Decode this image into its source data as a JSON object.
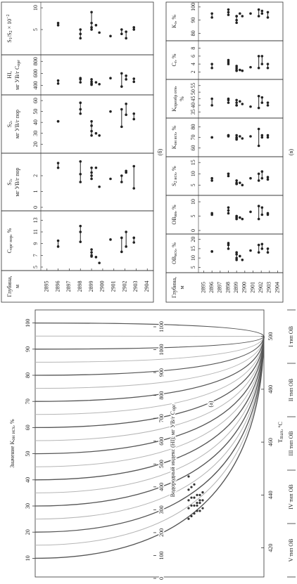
{
  "chart_data": [
    {
      "type": "line",
      "label": "(а)",
      "k_title": [
        {
          "text": "Значение K"
        },
        {
          "sub": "он исх"
        },
        {
          "text": ", %"
        }
      ],
      "k_ticks": [
        100,
        90,
        80,
        70,
        60,
        50,
        40,
        30,
        20,
        10
      ],
      "k_lim": [
        5,
        105
      ],
      "hi_title": [
        {
          "text": "Водородный индекс (HI), мг УВ/г C"
        },
        {
          "sub": "орг"
        }
      ],
      "hi_ticks": [
        0,
        100,
        200,
        300,
        400,
        500,
        600,
        700,
        800,
        900,
        1000,
        1100
      ],
      "hi_lim": [
        0,
        1100
      ],
      "x_title": [
        {
          "text": "T"
        },
        {
          "sub": "max"
        },
        {
          "text": ", °C"
        }
      ],
      "xticks": [
        420,
        440,
        460,
        480,
        500
      ],
      "xlim": [
        409,
        510
      ],
      "types": [
        "V тип ОВ",
        "IV тип ОВ",
        "III тип ОВ",
        "II тип ОВ",
        "I тип ОВ"
      ],
      "points_x": [
        431,
        432,
        433,
        434,
        434,
        435,
        435,
        436,
        436,
        437,
        437,
        438,
        438,
        439,
        439,
        440,
        440,
        441,
        442,
        443,
        444,
        436,
        438,
        441,
        447
      ],
      "color": "#333333"
    },
    {
      "type": "strip",
      "label": "(б)",
      "depth_title": [
        [
          {
            "text": "Глубина,"
          }
        ],
        [
          {
            "text": "м"
          }
        ]
      ],
      "depth_ticks": [
        2895,
        2896,
        2897,
        2898,
        2899,
        2900,
        2901,
        2902,
        2903,
        2904
      ],
      "ylim": [
        2894.7,
        2904.3
      ],
      "depths": [
        2896,
        2896,
        2898,
        2898,
        2898,
        2899,
        2899,
        2899,
        2899,
        2899.4,
        2899.7,
        2900.7,
        2901.7,
        2901.7,
        2902.1,
        2902.1,
        2902.8,
        2902.8
      ],
      "color": "#222222",
      "subplots": [
        {
          "title": [
            [
              {
                "text": "C"
              },
              {
                "sub": "орг пор"
              },
              {
                "text": ", %"
              }
            ]
          ],
          "xlim": [
            5,
            14
          ],
          "xticks": [
            5,
            7,
            9,
            11,
            13
          ],
          "values": [
            8.5,
            9.5,
            9.3,
            11,
            12,
            7,
            7.5,
            8,
            6.8,
            6.7,
            5.7,
            9.7,
            7.6,
            10,
            8.5,
            11,
            9.2,
            10
          ]
        },
        {
          "title": [
            [
              {
                "text": "S"
              },
              {
                "sub": "1"
              },
              {
                "text": ","
              }
            ],
            [
              {
                "text": "мг УВ/г пор"
              }
            ]
          ],
          "xlim": [
            0,
            3.2
          ],
          "xticks": [
            0,
            1,
            2
          ],
          "values": [
            2.5,
            2.8,
            1.6,
            2.1,
            2.9,
            1.8,
            2.2,
            2.5,
            2,
            2.5,
            1.3,
            1.8,
            1.6,
            2,
            2.3,
            2.2,
            1.2,
            2.6
          ]
        },
        {
          "title": [
            [
              {
                "text": "S"
              },
              {
                "sub": "2"
              },
              {
                "text": ","
              }
            ],
            [
              {
                "text": "мг УВ/г пор"
              }
            ]
          ],
          "xlim": [
            15,
            62
          ],
          "xticks": [
            20,
            30,
            40,
            50,
            60
          ],
          "values": [
            41,
            41,
            48,
            52,
            58,
            28,
            32,
            37,
            41,
            30,
            28,
            50,
            36,
            52,
            47,
            57,
            43,
            48
          ]
        },
        {
          "title": [
            [
              {
                "text": "HI,"
              }
            ],
            [
              {
                "text": "мг УВ/г C"
              },
              {
                "sub": "орг"
              }
            ]
          ],
          "xlim": [
            300,
            850
          ],
          "xticks": [
            400,
            600,
            800
          ],
          "values": [
            430,
            480,
            450,
            500,
            520,
            410,
            430,
            460,
            500,
            450,
            420,
            520,
            380,
            600,
            500,
            560,
            460,
            510
          ]
        },
        {
          "title": [
            [
              {
                "text": "S"
              },
              {
                "sub": "1"
              },
              {
                "text": "/S"
              },
              {
                "sub": "2"
              },
              {
                "text": " × 10"
              },
              {
                "sup": "−2"
              }
            ]
          ],
          "xlim": [
            0,
            10.5
          ],
          "xticks": [
            5,
            10
          ],
          "values": [
            6,
            6.5,
            3,
            4,
            5,
            5.5,
            6.5,
            9,
            5,
            6,
            4.3,
            3.5,
            4,
            5,
            4.5,
            3,
            5,
            5.5
          ]
        }
      ]
    },
    {
      "type": "strip",
      "label": "(в)",
      "depth_title": [
        [
          {
            "text": "Глубина,"
          }
        ],
        [
          {
            "text": "м"
          }
        ]
      ],
      "depth_ticks": [
        2895,
        2896,
        2897,
        2898,
        2899,
        2900,
        2901,
        2902,
        2903,
        2904
      ],
      "ylim": [
        2894.7,
        2904.3
      ],
      "depths": [
        2896,
        2896,
        2898,
        2898,
        2898,
        2899,
        2899,
        2899,
        2899,
        2899.4,
        2899.7,
        2900.7,
        2901.7,
        2901.7,
        2902.1,
        2902.1,
        2902.8,
        2902.8
      ],
      "color": "#222222",
      "subplots": [
        {
          "title": [
            [
              {
                "text": "ОВ"
              },
              {
                "sub": "исх"
              },
              {
                "text": ", %"
              }
            ]
          ],
          "xlim": [
            4,
            21
          ],
          "xticks": [
            5,
            10,
            15,
            20
          ],
          "values": [
            13.5,
            13.5,
            15,
            17,
            18,
            10,
            12,
            13,
            9,
            11,
            9,
            14,
            13,
            17,
            15,
            17.5,
            13,
            15
          ]
        },
        {
          "title": [
            [
              {
                "text": "ОВ"
              },
              {
                "sub": "ин"
              },
              {
                "text": ", %"
              }
            ]
          ],
          "xlim": [
            0,
            11
          ],
          "xticks": [
            0,
            5,
            10
          ],
          "values": [
            5.5,
            6,
            6,
            7,
            8,
            4,
            5,
            5,
            4.5,
            4.5,
            4,
            6.5,
            4,
            8.5,
            5.5,
            8,
            5.5,
            6
          ]
        },
        {
          "title": [
            [
              {
                "text": "S"
              },
              {
                "sub": "2 исх"
              },
              {
                "text": ", %"
              }
            ]
          ],
          "xlim": [
            2,
            16
          ],
          "xticks": [
            5,
            10,
            15
          ],
          "values": [
            7,
            8,
            9,
            10,
            10,
            5.5,
            6,
            7,
            5.5,
            6,
            5,
            8,
            7,
            10,
            8,
            11,
            7.5,
            8.5
          ]
        },
        {
          "title": [
            [
              {
                "text": "K"
              },
              {
                "sub": "он исх"
              },
              {
                "text": ", %"
              }
            ]
          ],
          "xlim": [
            55,
            85
          ],
          "xticks": [
            60,
            70,
            80
          ],
          "values": [
            70,
            70,
            71,
            72,
            72,
            68,
            70,
            72,
            69,
            71,
            69,
            71,
            62,
            78,
            70,
            72,
            70,
            72
          ]
        },
        {
          "title": [
            [
              {
                "text": "K"
              },
              {
                "sub": "преобр отн"
              },
              {
                "text": ","
              }
            ],
            [
              {
                "text": "%"
              }
            ]
          ],
          "xlim": [
            33,
            57
          ],
          "xticks": [
            35,
            40,
            45,
            50,
            55
          ],
          "values": [
            40,
            45,
            42,
            44,
            45,
            40,
            42,
            44,
            40,
            43,
            41,
            39,
            38,
            47,
            42,
            46,
            40,
            42
          ]
        },
        {
          "title": [
            [
              {
                "text": "C"
              },
              {
                "sub": "r"
              },
              {
                "text": ", %"
              }
            ]
          ],
          "xlim": [
            1,
            9
          ],
          "xticks": [
            2,
            4,
            6,
            8
          ],
          "values": [
            3,
            4,
            4,
            4.5,
            5,
            2.5,
            3,
            3.5,
            2.3,
            2.5,
            2.3,
            3.2,
            3,
            6,
            4,
            6,
            3,
            4
          ]
        },
        {
          "title": [
            [
              {
                "text": "K"
              },
              {
                "sub": "э"
              },
              {
                "text": ", %"
              }
            ]
          ],
          "xlim": [
            77,
            101
          ],
          "xticks": [
            80,
            90,
            100
          ],
          "values": [
            92,
            95,
            94,
            96,
            98,
            88,
            90,
            93,
            93,
            95,
            93,
            95,
            93,
            98,
            95,
            97,
            92,
            96
          ]
        }
      ]
    }
  ]
}
